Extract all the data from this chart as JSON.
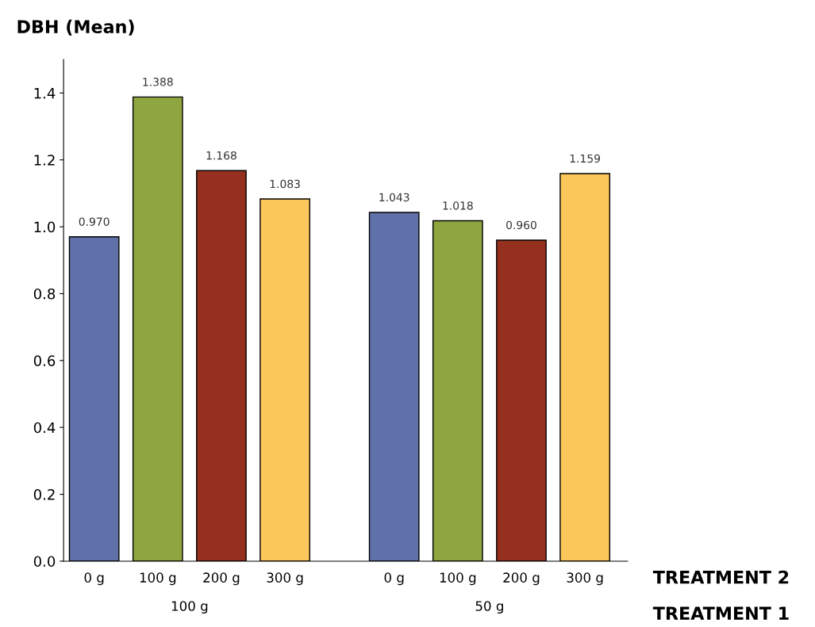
{
  "chart_data": {
    "type": "bar",
    "ylabel": "DBH (Mean)",
    "xlabel": "TREATMENT 1",
    "annotations": [
      "TREATMENT 2"
    ],
    "categories": [
      "100 g",
      "50 g"
    ],
    "series": [
      {
        "name": "0 g",
        "color": "#6070a8",
        "values": [
          0.97,
          1.043
        ],
        "value_labels": [
          "0.970",
          "1.043"
        ]
      },
      {
        "name": "100 g",
        "color": "#8fa53f",
        "values": [
          1.388,
          1.018
        ],
        "value_labels": [
          "1.388",
          "1.018"
        ]
      },
      {
        "name": "200 g",
        "color": "#96301e",
        "values": [
          1.168,
          0.96
        ],
        "value_labels": [
          "1.168",
          "0.960"
        ]
      },
      {
        "name": "300 g",
        "color": "#fcc75a",
        "values": [
          1.083,
          1.159
        ],
        "value_labels": [
          "1.083",
          "1.159"
        ]
      }
    ],
    "ylim": [
      0,
      1.5
    ],
    "yticks": [
      {
        "value": 0,
        "label": "0.0"
      },
      {
        "value": 0.2,
        "label": "0.2"
      },
      {
        "value": 0.4,
        "label": "0.4"
      },
      {
        "value": 0.6,
        "label": "0.6"
      },
      {
        "value": 0.8,
        "label": "0.8"
      },
      {
        "value": 1.0,
        "label": "1.0"
      },
      {
        "value": 1.2,
        "label": "1.2"
      },
      {
        "value": 1.4,
        "label": "1.4"
      }
    ],
    "grid": false,
    "legend": false
  }
}
